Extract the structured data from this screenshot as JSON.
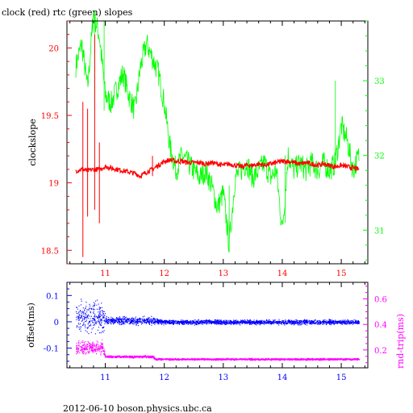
{
  "title": "clock (red) rtc (green) slopes",
  "footer": "2012-06-10 boson.physics.ubc.ca",
  "colors": {
    "red": "#ff0000",
    "green": "#00ff00",
    "blue": "#0000ff",
    "magenta": "#ff00ff",
    "black": "#000000"
  },
  "chart_data": [
    {
      "type": "line",
      "title": "clock (red) rtc (green) slopes",
      "ylabel": "clockslope",
      "xlim": [
        10.35,
        15.45
      ],
      "ylim": [
        18.4,
        20.2
      ],
      "y2lim": [
        30.55,
        33.8
      ],
      "x_ticks": [
        11,
        12,
        13,
        14,
        15
      ],
      "x_tick_labels": [
        "11",
        "12",
        "13",
        "14",
        "15"
      ],
      "y_ticks": [
        18.5,
        19,
        19.5,
        20
      ],
      "y_tick_labels": [
        "18.5",
        "19",
        "19.5",
        "20"
      ],
      "y2_ticks": [
        31,
        32,
        33
      ],
      "y2_tick_labels": [
        "31",
        "32",
        "33"
      ],
      "series": [
        {
          "axis": "left",
          "color": "#ff0000",
          "x": [
            10.5,
            10.6,
            10.7,
            10.8,
            10.9,
            11.0,
            11.1,
            11.2,
            11.3,
            11.4,
            11.5,
            11.6,
            11.7,
            11.8,
            11.9,
            12.0,
            12.1,
            12.2,
            12.3,
            12.4,
            12.5,
            12.6,
            12.7,
            12.8,
            12.9,
            13.0,
            13.1,
            13.2,
            13.3,
            13.4,
            13.5,
            13.6,
            13.7,
            13.8,
            13.9,
            14.0,
            14.1,
            14.2,
            14.3,
            14.4,
            14.5,
            14.6,
            14.7,
            14.8,
            14.9,
            15.0,
            15.1,
            15.2,
            15.3
          ],
          "y": [
            19.09,
            19.1,
            19.09,
            19.1,
            19.1,
            19.12,
            19.11,
            19.1,
            19.09,
            19.08,
            19.07,
            19.05,
            19.08,
            19.1,
            19.13,
            19.16,
            19.17,
            19.16,
            19.16,
            19.15,
            19.15,
            19.15,
            19.14,
            19.15,
            19.14,
            19.13,
            19.14,
            19.13,
            19.12,
            19.13,
            19.13,
            19.14,
            19.13,
            19.14,
            19.15,
            19.16,
            19.16,
            19.15,
            19.14,
            19.15,
            19.14,
            19.13,
            19.14,
            19.13,
            19.12,
            19.13,
            19.12,
            19.11,
            19.1
          ]
        },
        {
          "axis": "right",
          "color": "#00ff00",
          "x": [
            10.5,
            10.6,
            10.7,
            10.8,
            10.9,
            11.0,
            11.1,
            11.2,
            11.3,
            11.4,
            11.5,
            11.6,
            11.7,
            11.8,
            11.9,
            12.0,
            12.1,
            12.2,
            12.3,
            12.4,
            12.5,
            12.6,
            12.7,
            12.8,
            12.9,
            13.0,
            13.1,
            13.2,
            13.3,
            13.4,
            13.5,
            13.6,
            13.7,
            13.8,
            13.9,
            14.0,
            14.1,
            14.2,
            14.3,
            14.4,
            14.5,
            14.6,
            14.7,
            14.8,
            14.9,
            15.0,
            15.1,
            15.2,
            15.3
          ],
          "y": [
            33.2,
            33.5,
            32.9,
            33.9,
            33.6,
            32.8,
            32.7,
            32.9,
            33.1,
            32.8,
            32.6,
            33.2,
            33.5,
            33.3,
            33.1,
            32.7,
            32.1,
            31.8,
            32.0,
            31.9,
            31.8,
            31.7,
            31.8,
            31.6,
            31.3,
            31.5,
            30.8,
            31.7,
            31.8,
            31.9,
            31.7,
            31.8,
            31.9,
            31.7,
            31.8,
            31.0,
            32.0,
            31.8,
            31.9,
            31.8,
            31.9,
            31.8,
            31.9,
            31.8,
            31.9,
            32.4,
            32.2,
            31.8,
            32.0
          ]
        }
      ]
    },
    {
      "type": "scatter",
      "ylabel": "offset(ms)",
      "y2label": "rnd-trip(ms)",
      "xlim": [
        10.35,
        15.45
      ],
      "ylim": [
        -0.175,
        0.15
      ],
      "y2lim": [
        0.06,
        0.73
      ],
      "x_ticks": [
        11,
        12,
        13,
        14,
        15
      ],
      "x_tick_labels": [
        "11",
        "12",
        "13",
        "14",
        "15"
      ],
      "y_ticks": [
        -0.1,
        0,
        0.1
      ],
      "y_tick_labels": [
        "-0.1",
        "0",
        "0.1"
      ],
      "y2_ticks": [
        0.2,
        0.4,
        0.6
      ],
      "y2_tick_labels": [
        "0.2",
        "0.4",
        "0.6"
      ],
      "series": [
        {
          "axis": "left",
          "color": "#0000ff",
          "x": [
            10.5,
            10.75,
            10.95,
            11.0,
            11.25,
            11.5,
            11.75,
            12.0,
            12.5,
            13.0,
            13.5,
            14.0,
            14.5,
            15.0,
            15.3
          ],
          "y": [
            0.02,
            0.02,
            0.02,
            0.005,
            0.005,
            0.005,
            0.005,
            0.0,
            0.0,
            0.0,
            0.0,
            0.0,
            0.0,
            0.0,
            0.0
          ],
          "spread": [
            0.08,
            0.08,
            0.08,
            0.02,
            0.02,
            0.02,
            0.02,
            0.012,
            0.012,
            0.012,
            0.012,
            0.012,
            0.012,
            0.012,
            0.012
          ]
        },
        {
          "axis": "right",
          "color": "#ff00ff",
          "x": [
            10.5,
            10.75,
            10.95,
            11.0,
            11.25,
            11.5,
            11.8,
            11.85,
            12.5,
            13.0,
            13.5,
            14.0,
            14.5,
            15.0,
            15.3
          ],
          "y": [
            0.22,
            0.22,
            0.22,
            0.15,
            0.15,
            0.15,
            0.15,
            0.13,
            0.13,
            0.13,
            0.13,
            0.13,
            0.13,
            0.13,
            0.13
          ],
          "spread": [
            0.07,
            0.07,
            0.07,
            0.012,
            0.012,
            0.012,
            0.012,
            0.01,
            0.01,
            0.01,
            0.01,
            0.01,
            0.01,
            0.01,
            0.01
          ]
        }
      ]
    }
  ]
}
